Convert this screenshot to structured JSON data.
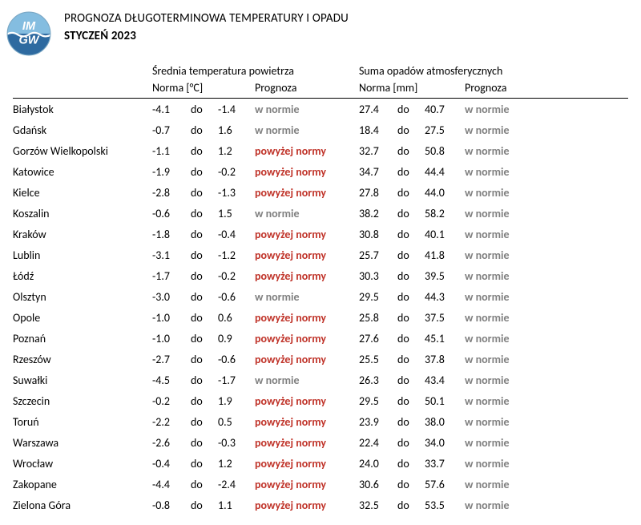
{
  "header": {
    "main_title": "PROGNOZA DŁUGOTERMINOWA TEMPERATURY I OPADU",
    "month_title": "STYCZEŃ 2023"
  },
  "table": {
    "group_temp": "Średnia temperatura powietrza",
    "group_precip": "Suma opadów atmosferycznych",
    "norma_temp": "Norma [°C]",
    "norma_precip": "Norma [mm]",
    "prognoza": "Prognoza",
    "do": "do",
    "prog_labels": {
      "normal": "w normie",
      "above": "powyżej normy"
    }
  },
  "colors": {
    "normal": "#7f7f7f",
    "above": "#c0342a",
    "logo_top": "#84bde0",
    "logo_bottom": "#2e6aa0",
    "logo_wave": "#ffffff"
  },
  "rows": [
    {
      "city": "Białystok",
      "tmin": "-4.1",
      "tmax": "-1.4",
      "tprog": "normal",
      "pmin": "27.4",
      "pmax": "40.7",
      "pprog": "normal"
    },
    {
      "city": "Gdańsk",
      "tmin": "-0.7",
      "tmax": "1.6",
      "tprog": "normal",
      "pmin": "18.4",
      "pmax": "27.5",
      "pprog": "normal"
    },
    {
      "city": "Gorzów Wielkopolski",
      "tmin": "-1.1",
      "tmax": "1.2",
      "tprog": "above",
      "pmin": "32.7",
      "pmax": "50.8",
      "pprog": "normal"
    },
    {
      "city": "Katowice",
      "tmin": "-1.9",
      "tmax": "-0.2",
      "tprog": "above",
      "pmin": "34.7",
      "pmax": "44.4",
      "pprog": "normal"
    },
    {
      "city": "Kielce",
      "tmin": "-2.8",
      "tmax": "-1.3",
      "tprog": "above",
      "pmin": "27.8",
      "pmax": "44.0",
      "pprog": "normal"
    },
    {
      "city": "Koszalin",
      "tmin": "-0.6",
      "tmax": "1.5",
      "tprog": "normal",
      "pmin": "38.2",
      "pmax": "58.2",
      "pprog": "normal"
    },
    {
      "city": "Kraków",
      "tmin": "-1.8",
      "tmax": "-0.4",
      "tprog": "above",
      "pmin": "30.8",
      "pmax": "40.1",
      "pprog": "normal"
    },
    {
      "city": "Lublin",
      "tmin": "-3.1",
      "tmax": "-1.2",
      "tprog": "above",
      "pmin": "25.7",
      "pmax": "41.8",
      "pprog": "normal"
    },
    {
      "city": "Łódź",
      "tmin": "-1.7",
      "tmax": "-0.2",
      "tprog": "above",
      "pmin": "30.3",
      "pmax": "39.5",
      "pprog": "normal"
    },
    {
      "city": "Olsztyn",
      "tmin": "-3.0",
      "tmax": "-0.6",
      "tprog": "normal",
      "pmin": "29.5",
      "pmax": "44.3",
      "pprog": "normal"
    },
    {
      "city": "Opole",
      "tmin": "-1.0",
      "tmax": "0.6",
      "tprog": "above",
      "pmin": "25.8",
      "pmax": "37.5",
      "pprog": "normal"
    },
    {
      "city": "Poznań",
      "tmin": "-1.0",
      "tmax": "0.9",
      "tprog": "above",
      "pmin": "27.6",
      "pmax": "45.1",
      "pprog": "normal"
    },
    {
      "city": "Rzeszów",
      "tmin": "-2.7",
      "tmax": "-0.6",
      "tprog": "above",
      "pmin": "25.5",
      "pmax": "37.8",
      "pprog": "normal"
    },
    {
      "city": "Suwałki",
      "tmin": "-4.5",
      "tmax": "-1.7",
      "tprog": "normal",
      "pmin": "26.3",
      "pmax": "43.4",
      "pprog": "normal"
    },
    {
      "city": "Szczecin",
      "tmin": "-0.2",
      "tmax": "1.9",
      "tprog": "above",
      "pmin": "29.5",
      "pmax": "50.1",
      "pprog": "normal"
    },
    {
      "city": "Toruń",
      "tmin": "-2.2",
      "tmax": "0.5",
      "tprog": "above",
      "pmin": "23.9",
      "pmax": "38.0",
      "pprog": "normal"
    },
    {
      "city": "Warszawa",
      "tmin": "-2.6",
      "tmax": "-0.3",
      "tprog": "above",
      "pmin": "22.4",
      "pmax": "34.0",
      "pprog": "normal"
    },
    {
      "city": "Wrocław",
      "tmin": "-0.4",
      "tmax": "1.2",
      "tprog": "above",
      "pmin": "24.0",
      "pmax": "33.7",
      "pprog": "normal"
    },
    {
      "city": "Zakopane",
      "tmin": "-4.4",
      "tmax": "-2.4",
      "tprog": "above",
      "pmin": "30.6",
      "pmax": "57.6",
      "pprog": "normal"
    },
    {
      "city": "Zielona Góra",
      "tmin": "-0.8",
      "tmax": "1.1",
      "tprog": "above",
      "pmin": "32.5",
      "pmax": "53.5",
      "pprog": "normal"
    }
  ]
}
